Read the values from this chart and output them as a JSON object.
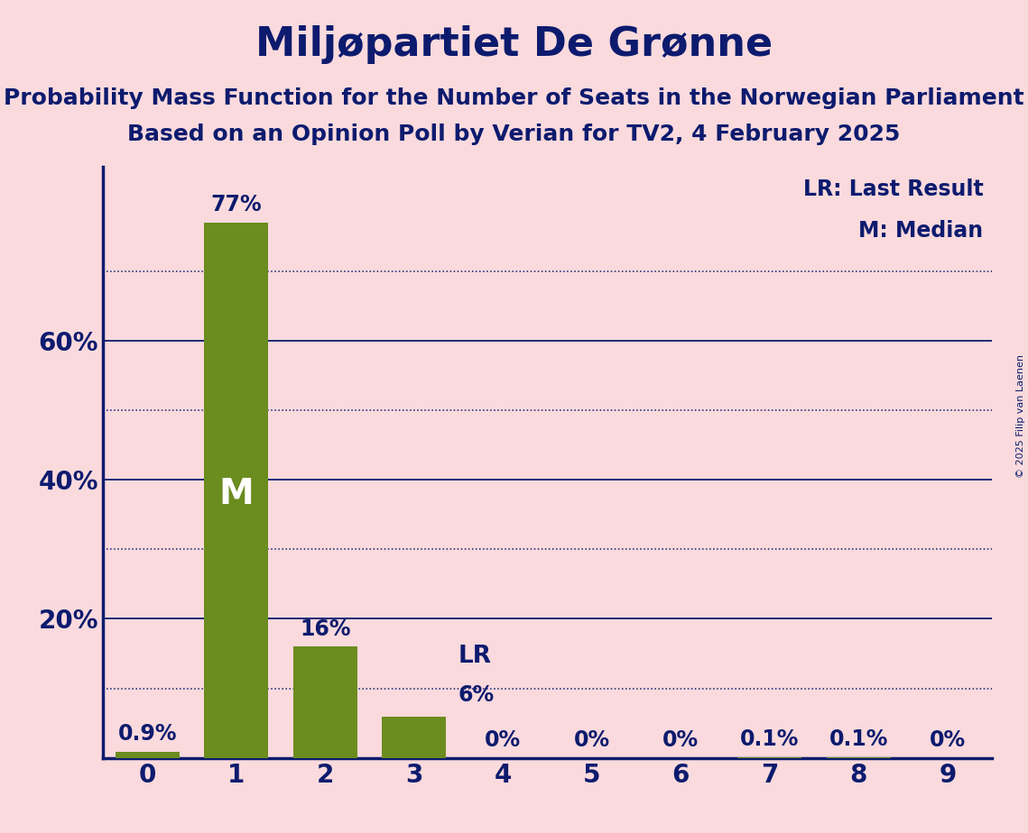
{
  "title": "Miljøpartiet De Grønne",
  "subtitle1": "Probability Mass Function for the Number of Seats in the Norwegian Parliament",
  "subtitle2": "Based on an Opinion Poll by Verian for TV2, 4 February 2025",
  "copyright": "© 2025 Filip van Laenen",
  "categories": [
    0,
    1,
    2,
    3,
    4,
    5,
    6,
    7,
    8,
    9
  ],
  "values": [
    0.9,
    77.0,
    16.0,
    6.0,
    0.0,
    0.0,
    0.0,
    0.1,
    0.1,
    0.0
  ],
  "bar_labels": [
    "0.9%",
    "77%",
    "16%",
    "6%",
    "0%",
    "0%",
    "0%",
    "0.1%",
    "0.1%",
    "0%"
  ],
  "bar_color": "#6B8C1E",
  "background_color": "#FADADD",
  "text_color": "#0D1B6E",
  "median_bar": 1,
  "lr_bar": 3,
  "ylim": [
    0,
    85
  ],
  "yticks": [
    0,
    20,
    40,
    60
  ],
  "ytick_labels": [
    "",
    "20%",
    "40%",
    "60%"
  ],
  "solid_gridlines": [
    20,
    40,
    60
  ],
  "dotted_gridlines": [
    10,
    30,
    50,
    70
  ],
  "legend_lr": "LR: Last Result",
  "legend_m": "M: Median",
  "title_fontsize": 32,
  "subtitle_fontsize": 18,
  "tick_fontsize": 20,
  "legend_fontsize": 17,
  "bar_label_fontsize": 17,
  "median_label_fontsize": 28,
  "annotation_fontsize": 19
}
